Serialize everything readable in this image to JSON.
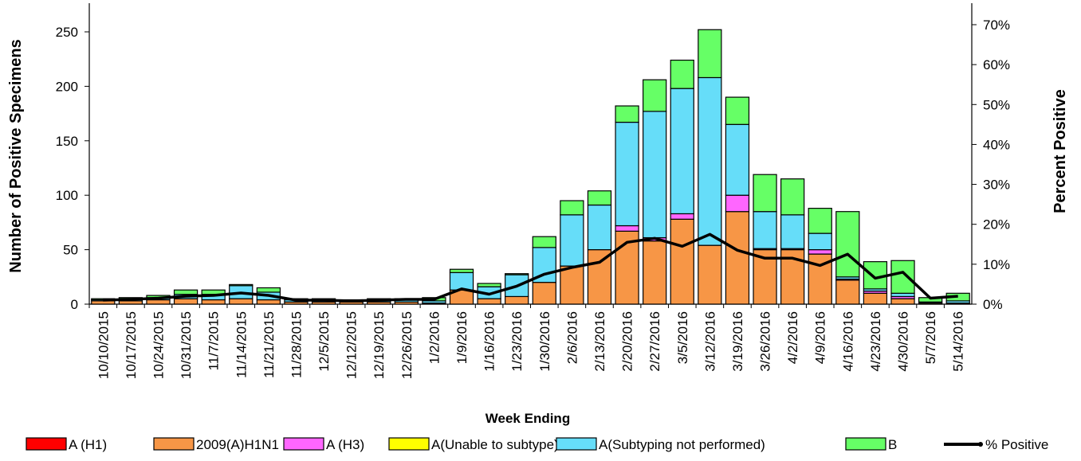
{
  "chart_data": {
    "type": "bar",
    "stacked": true,
    "title": "",
    "xlabel": "Week Ending",
    "ylabel": "Number of  Positive Specimens",
    "y2label": "Percent Positive",
    "ylim": [
      0,
      250
    ],
    "yticks": [
      0,
      50,
      100,
      150,
      200,
      250
    ],
    "y2lim": [
      0,
      0.7
    ],
    "y2ticks": [
      "0%",
      "10%",
      "20%",
      "30%",
      "40%",
      "50%",
      "60%",
      "70%"
    ],
    "legend_position": "bottom",
    "grid": false,
    "categories": [
      "10/10/2015",
      "10/17/2015",
      "10/24/2015",
      "10/31/2015",
      "11/7/2015",
      "11/14/2015",
      "11/21/2015",
      "11/28/2015",
      "12/5/2015",
      "12/12/2015",
      "12/19/2015",
      "12/26/2015",
      "1/2/2016",
      "1/9/2016",
      "1/16/2016",
      "1/23/2016",
      "1/30/2016",
      "2/6/2016",
      "2/13/2016",
      "2/20/2016",
      "2/27/2016",
      "3/5/2016",
      "3/12/2016",
      "3/19/2016",
      "3/26/2016",
      "4/2/2016",
      "4/9/2016",
      "4/16/2016",
      "4/23/2016",
      "4/30/2016",
      "5/7/2016",
      "5/14/2016"
    ],
    "series": [
      {
        "name": "A (H1)",
        "color": "#ff0000",
        "values": [
          0,
          0,
          0,
          0,
          0,
          0,
          0,
          0,
          0,
          0,
          0,
          0,
          0,
          0,
          0,
          0,
          0,
          0,
          0,
          0,
          0,
          0,
          0,
          0,
          0,
          0,
          0,
          0,
          0,
          0,
          0,
          0
        ]
      },
      {
        "name": "2009(A)H1N1",
        "color": "#f79646",
        "values": [
          3,
          3,
          4,
          5,
          4,
          5,
          4,
          2,
          2,
          2,
          2,
          2,
          1,
          13,
          5,
          7,
          20,
          35,
          50,
          67,
          58,
          78,
          54,
          85,
          50,
          50,
          46,
          22,
          10,
          5,
          1,
          1
        ]
      },
      {
        "name": "A (H3)",
        "color": "#ff66ff",
        "values": [
          0,
          0,
          0,
          0,
          0,
          0,
          0,
          0,
          0,
          0,
          0,
          0,
          0,
          0,
          0,
          0,
          0,
          0,
          0,
          5,
          3,
          5,
          0,
          15,
          1,
          1,
          4,
          1,
          2,
          2,
          0,
          0
        ]
      },
      {
        "name": "A(Unable to subtype)",
        "color": "#ffff00",
        "values": [
          0,
          0,
          0,
          0,
          0,
          0,
          0,
          0,
          0,
          0,
          0,
          0,
          0,
          0,
          0,
          0,
          0,
          0,
          0,
          0,
          0,
          0,
          0,
          0,
          0,
          0,
          0,
          0,
          0,
          0,
          0,
          0
        ]
      },
      {
        "name": "A(Subtyping not performed)",
        "color": "#66ddf9",
        "values": [
          1,
          2,
          2,
          4,
          5,
          12,
          7,
          2,
          2,
          2,
          2,
          2,
          2,
          16,
          11,
          20,
          32,
          47,
          41,
          95,
          116,
          115,
          154,
          65,
          34,
          31,
          15,
          2,
          2,
          3,
          1,
          2
        ]
      },
      {
        "name": "B",
        "color": "#66ff66",
        "values": [
          1,
          1,
          2,
          4,
          4,
          1,
          4,
          1,
          1,
          0,
          1,
          1,
          3,
          3,
          3,
          1,
          10,
          13,
          13,
          15,
          29,
          26,
          44,
          25,
          34,
          33,
          23,
          60,
          25,
          30,
          4,
          7
        ]
      }
    ],
    "line_series": {
      "name": "% Positive",
      "color": "#000000",
      "axis": "right",
      "values": [
        0.01,
        0.012,
        0.015,
        0.02,
        0.022,
        0.028,
        0.022,
        0.01,
        0.01,
        0.008,
        0.01,
        0.012,
        0.012,
        0.038,
        0.025,
        0.045,
        0.075,
        0.092,
        0.105,
        0.155,
        0.165,
        0.145,
        0.175,
        0.135,
        0.115,
        0.115,
        0.097,
        0.125,
        0.065,
        0.08,
        0.015,
        0.02
      ]
    }
  }
}
